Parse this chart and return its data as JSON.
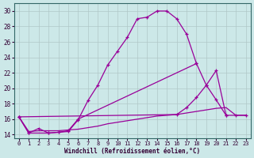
{
  "xlabel": "Windchill (Refroidissement éolien,°C)",
  "xlim": [
    -0.5,
    23.5
  ],
  "ylim": [
    13.5,
    31
  ],
  "yticks": [
    14,
    16,
    18,
    20,
    22,
    24,
    26,
    28,
    30
  ],
  "xticks": [
    0,
    1,
    2,
    3,
    4,
    5,
    6,
    7,
    8,
    9,
    10,
    11,
    12,
    13,
    14,
    15,
    16,
    17,
    18,
    19,
    20,
    21,
    22,
    23
  ],
  "bg_color": "#cce8e8",
  "line_color": "#990099",
  "grid_color": "#b0c8c8",
  "line_series": [
    {
      "x": [
        0,
        1,
        3,
        4,
        5,
        6,
        7,
        8,
        9,
        10,
        11,
        12,
        13,
        14,
        15,
        16,
        17,
        18
      ],
      "y": [
        16.3,
        14.2,
        14.2,
        14.3,
        14.4,
        15.9,
        18.4,
        20.4,
        23.0,
        24.8,
        26.6,
        29.0,
        29.2,
        30.0,
        30.0,
        29.0,
        27.0,
        23.2
      ],
      "marker": true
    },
    {
      "x": [
        0,
        1,
        2,
        3,
        4,
        5,
        6,
        18,
        19,
        20,
        21
      ],
      "y": [
        16.3,
        14.2,
        14.8,
        14.2,
        14.3,
        14.5,
        16.0,
        23.2,
        20.4,
        18.5,
        16.5
      ],
      "marker": true
    },
    {
      "x": [
        0,
        16,
        17,
        18,
        19,
        20,
        21,
        22,
        23
      ],
      "y": [
        16.3,
        16.6,
        17.5,
        18.8,
        20.4,
        22.3,
        16.5,
        16.5,
        16.5
      ],
      "marker": true
    },
    {
      "x": [
        0,
        1,
        2,
        3,
        4,
        5,
        6,
        7,
        8,
        9,
        10,
        11,
        12,
        13,
        14,
        15,
        16,
        17,
        18,
        19,
        20,
        21,
        22,
        23
      ],
      "y": [
        16.3,
        14.4,
        14.5,
        14.5,
        14.5,
        14.6,
        14.7,
        14.9,
        15.1,
        15.4,
        15.6,
        15.8,
        16.0,
        16.2,
        16.4,
        16.5,
        16.6,
        16.8,
        17.0,
        17.2,
        17.4,
        17.5,
        16.5,
        16.5
      ],
      "marker": false
    }
  ]
}
